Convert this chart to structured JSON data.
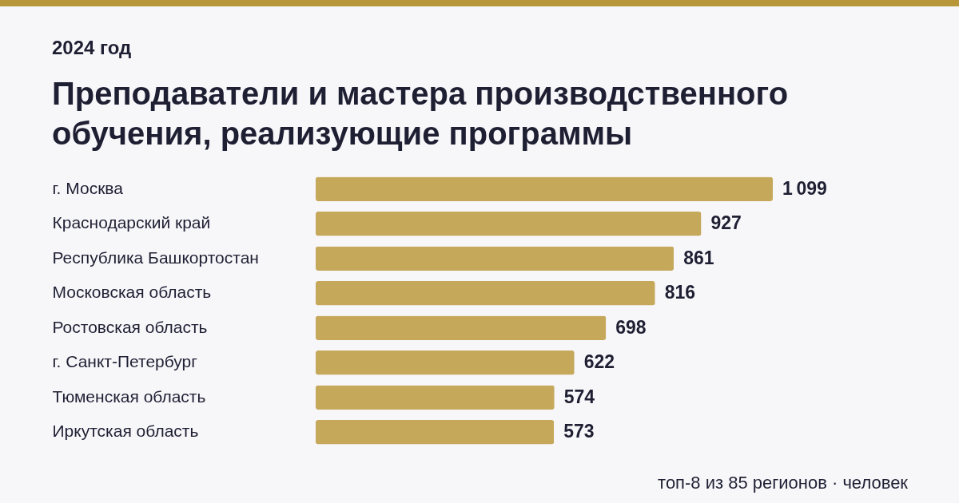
{
  "chart_data": {
    "type": "bar",
    "orientation": "horizontal",
    "title": "Преподаватели и мастера производственного обучения, реализующие программы",
    "subtitle": "2024 год",
    "categories": [
      "г. Москва",
      "Краснодарский край",
      "Республика Башкортостан",
      "Московская область",
      "Ростовская область",
      "г. Санкт-Петербург",
      "Тюменская область",
      "Иркутская область"
    ],
    "values": [
      1099,
      927,
      861,
      816,
      698,
      622,
      574,
      573
    ],
    "color": "#c5a85a",
    "data_labels": true,
    "annotations": [
      "топ-8 из 85 регионов · человек"
    ]
  }
}
